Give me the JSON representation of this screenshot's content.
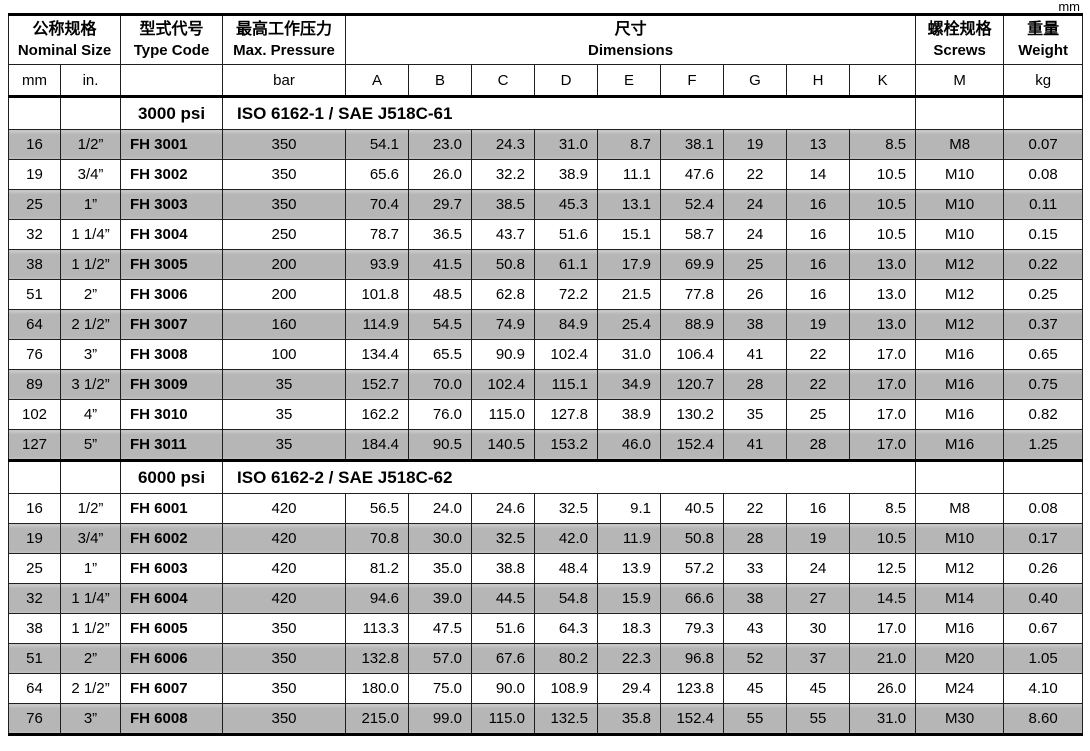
{
  "unit_label": "mm",
  "columns": {
    "nominal_size": {
      "zh": "公称规格",
      "en": "Nominal Size",
      "units": [
        "mm",
        "in."
      ]
    },
    "type_code": {
      "zh": "型式代号",
      "en": "Type Code",
      "unit": ""
    },
    "max_pressure": {
      "zh": "最高工作压力",
      "en": "Max. Pressure",
      "unit": "bar"
    },
    "dimensions": {
      "zh": "尺寸",
      "en": "Dimensions",
      "letters": [
        "A",
        "B",
        "C",
        "D",
        "E",
        "F",
        "G",
        "H",
        "K"
      ]
    },
    "screws": {
      "zh": "螺栓规格",
      "en": "Screws",
      "letter": "M"
    },
    "weight": {
      "zh": "重量",
      "en": "Weight",
      "unit": "kg"
    }
  },
  "sections": [
    {
      "rating": "3000 psi",
      "standard": "ISO 6162-1 / SAE J518C-61",
      "rows": [
        {
          "mm": "16",
          "in": "1/2”",
          "code": "FH 3001",
          "bar": "350",
          "dims": [
            "54.1",
            "23.0",
            "24.3",
            "31.0",
            "8.7",
            "38.1",
            "19",
            "13",
            "8.5"
          ],
          "screw": "M8",
          "weight": "0.07"
        },
        {
          "mm": "19",
          "in": "3/4”",
          "code": "FH 3002",
          "bar": "350",
          "dims": [
            "65.6",
            "26.0",
            "32.2",
            "38.9",
            "11.1",
            "47.6",
            "22",
            "14",
            "10.5"
          ],
          "screw": "M10",
          "weight": "0.08"
        },
        {
          "mm": "25",
          "in": "1”",
          "code": "FH 3003",
          "bar": "350",
          "dims": [
            "70.4",
            "29.7",
            "38.5",
            "45.3",
            "13.1",
            "52.4",
            "24",
            "16",
            "10.5"
          ],
          "screw": "M10",
          "weight": "0.11"
        },
        {
          "mm": "32",
          "in": "1 1/4”",
          "code": "FH 3004",
          "bar": "250",
          "dims": [
            "78.7",
            "36.5",
            "43.7",
            "51.6",
            "15.1",
            "58.7",
            "24",
            "16",
            "10.5"
          ],
          "screw": "M10",
          "weight": "0.15"
        },
        {
          "mm": "38",
          "in": "1 1/2”",
          "code": "FH 3005",
          "bar": "200",
          "dims": [
            "93.9",
            "41.5",
            "50.8",
            "61.1",
            "17.9",
            "69.9",
            "25",
            "16",
            "13.0"
          ],
          "screw": "M12",
          "weight": "0.22"
        },
        {
          "mm": "51",
          "in": "2”",
          "code": "FH 3006",
          "bar": "200",
          "dims": [
            "101.8",
            "48.5",
            "62.8",
            "72.2",
            "21.5",
            "77.8",
            "26",
            "16",
            "13.0"
          ],
          "screw": "M12",
          "weight": "0.25"
        },
        {
          "mm": "64",
          "in": "2 1/2”",
          "code": "FH 3007",
          "bar": "160",
          "dims": [
            "114.9",
            "54.5",
            "74.9",
            "84.9",
            "25.4",
            "88.9",
            "38",
            "19",
            "13.0"
          ],
          "screw": "M12",
          "weight": "0.37"
        },
        {
          "mm": "76",
          "in": "3”",
          "code": "FH 3008",
          "bar": "100",
          "dims": [
            "134.4",
            "65.5",
            "90.9",
            "102.4",
            "31.0",
            "106.4",
            "41",
            "22",
            "17.0"
          ],
          "screw": "M16",
          "weight": "0.65"
        },
        {
          "mm": "89",
          "in": "3 1/2”",
          "code": "FH 3009",
          "bar": "35",
          "dims": [
            "152.7",
            "70.0",
            "102.4",
            "115.1",
            "34.9",
            "120.7",
            "28",
            "22",
            "17.0"
          ],
          "screw": "M16",
          "weight": "0.75"
        },
        {
          "mm": "102",
          "in": "4”",
          "code": "FH 3010",
          "bar": "35",
          "dims": [
            "162.2",
            "76.0",
            "115.0",
            "127.8",
            "38.9",
            "130.2",
            "35",
            "25",
            "17.0"
          ],
          "screw": "M16",
          "weight": "0.82"
        },
        {
          "mm": "127",
          "in": "5”",
          "code": "FH 3011",
          "bar": "35",
          "dims": [
            "184.4",
            "90.5",
            "140.5",
            "153.2",
            "46.0",
            "152.4",
            "41",
            "28",
            "17.0"
          ],
          "screw": "M16",
          "weight": "1.25"
        }
      ]
    },
    {
      "rating": "6000 psi",
      "standard": "ISO 6162-2 / SAE J518C-62",
      "rows": [
        {
          "mm": "16",
          "in": "1/2”",
          "code": "FH 6001",
          "bar": "420",
          "dims": [
            "56.5",
            "24.0",
            "24.6",
            "32.5",
            "9.1",
            "40.5",
            "22",
            "16",
            "8.5"
          ],
          "screw": "M8",
          "weight": "0.08"
        },
        {
          "mm": "19",
          "in": "3/4”",
          "code": "FH 6002",
          "bar": "420",
          "dims": [
            "70.8",
            "30.0",
            "32.5",
            "42.0",
            "11.9",
            "50.8",
            "28",
            "19",
            "10.5"
          ],
          "screw": "M10",
          "weight": "0.17"
        },
        {
          "mm": "25",
          "in": "1”",
          "code": "FH 6003",
          "bar": "420",
          "dims": [
            "81.2",
            "35.0",
            "38.8",
            "48.4",
            "13.9",
            "57.2",
            "33",
            "24",
            "12.5"
          ],
          "screw": "M12",
          "weight": "0.26"
        },
        {
          "mm": "32",
          "in": "1 1/4”",
          "code": "FH 6004",
          "bar": "420",
          "dims": [
            "94.6",
            "39.0",
            "44.5",
            "54.8",
            "15.9",
            "66.6",
            "38",
            "27",
            "14.5"
          ],
          "screw": "M14",
          "weight": "0.40"
        },
        {
          "mm": "38",
          "in": "1 1/2”",
          "code": "FH 6005",
          "bar": "350",
          "dims": [
            "113.3",
            "47.5",
            "51.6",
            "64.3",
            "18.3",
            "79.3",
            "43",
            "30",
            "17.0"
          ],
          "screw": "M16",
          "weight": "0.67"
        },
        {
          "mm": "51",
          "in": "2”",
          "code": "FH 6006",
          "bar": "350",
          "dims": [
            "132.8",
            "57.0",
            "67.6",
            "80.2",
            "22.3",
            "96.8",
            "52",
            "37",
            "21.0"
          ],
          "screw": "M20",
          "weight": "1.05"
        },
        {
          "mm": "64",
          "in": "2 1/2”",
          "code": "FH 6007",
          "bar": "350",
          "dims": [
            "180.0",
            "75.0",
            "90.0",
            "108.9",
            "29.4",
            "123.8",
            "45",
            "45",
            "26.0"
          ],
          "screw": "M24",
          "weight": "4.10"
        },
        {
          "mm": "76",
          "in": "3”",
          "code": "FH 6008",
          "bar": "350",
          "dims": [
            "215.0",
            "99.0",
            "115.0",
            "132.5",
            "35.8",
            "152.4",
            "55",
            "55",
            "31.0"
          ],
          "screw": "M30",
          "weight": "8.60"
        }
      ]
    }
  ]
}
